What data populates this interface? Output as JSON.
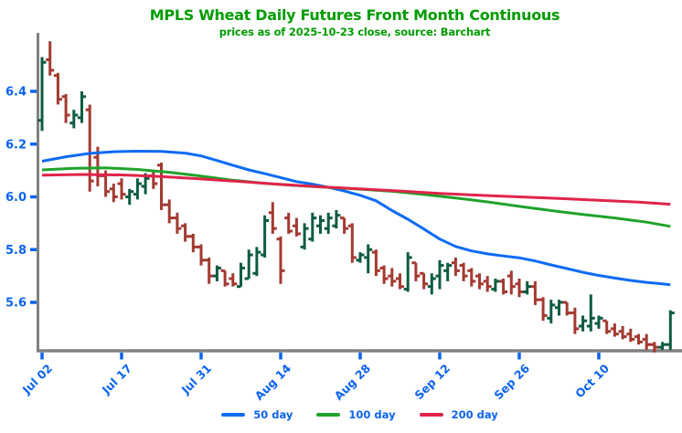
{
  "header": {
    "title": "MPLS Wheat Daily Futures Front Month Continuous",
    "subtitle": "prices as of 2025-10-23 close, source: Barchart"
  },
  "colors": {
    "title_green": "#009c00",
    "label_blue": "#0b64f0",
    "bar_up_green": "#0d5c40",
    "bar_down_red": "#a33a31",
    "ma50_blue": "#0d6bf5",
    "ma100_green": "#1fa32b",
    "ma200_red": "#e02449",
    "axis_gray": "#808080"
  },
  "legend": {
    "items": [
      {
        "label": "50 day",
        "color": "#0d6bf5"
      },
      {
        "label": "100 day",
        "color": "#1fa32b"
      },
      {
        "label": "200 day",
        "color": "#e02449"
      }
    ]
  },
  "chart_data": {
    "type": "bar",
    "subtype": "ohlc-daily-with-moving-averages",
    "title": "MPLS Wheat Daily Futures Front Month Continuous",
    "subtitle": "prices as of 2025-10-23 close, source: Barchart",
    "xlabel": "",
    "ylabel": "",
    "ylim": [
      5.41,
      6.63
    ],
    "grid": false,
    "legend_position": "bottom-center",
    "yticks": [
      6.4,
      6.2,
      6.0,
      5.8,
      5.6
    ],
    "xticks": [
      {
        "index": 0,
        "label": "Jul 02"
      },
      {
        "index": 10,
        "label": "Jul 17"
      },
      {
        "index": 20,
        "label": "Jul 31"
      },
      {
        "index": 30,
        "label": "Aug 14"
      },
      {
        "index": 40,
        "label": "Aug 28"
      },
      {
        "index": 50,
        "label": "Sep 12"
      },
      {
        "index": 60,
        "label": "Sep 26"
      },
      {
        "index": 70,
        "label": "Oct 10"
      }
    ],
    "bars_format": [
      "date",
      "open",
      "high",
      "low",
      "close"
    ],
    "bars": [
      [
        "Jul 02",
        6.29,
        6.53,
        6.25,
        6.51
      ],
      [
        "Jul 03",
        6.52,
        6.59,
        6.46,
        6.48
      ],
      [
        "Jul 07",
        6.46,
        6.47,
        6.35,
        6.37
      ],
      [
        "Jul 08",
        6.38,
        6.39,
        6.28,
        6.31
      ],
      [
        "Jul 09",
        6.28,
        6.33,
        6.26,
        6.31
      ],
      [
        "Jul 10",
        6.3,
        6.4,
        6.28,
        6.38
      ],
      [
        "Jul 11",
        6.33,
        6.35,
        6.02,
        6.06
      ],
      [
        "Jul 14",
        6.15,
        6.19,
        6.04,
        6.08
      ],
      [
        "Jul 15",
        6.08,
        6.1,
        6.0,
        6.02
      ],
      [
        "Jul 16",
        6.03,
        6.05,
        5.98,
        6.0
      ],
      [
        "Jul 17",
        6.05,
        6.07,
        5.99,
        6.01
      ],
      [
        "Jul 18",
        6.0,
        6.03,
        5.97,
        6.02
      ],
      [
        "Jul 21",
        6.01,
        6.07,
        5.99,
        6.05
      ],
      [
        "Jul 22",
        6.04,
        6.09,
        6.01,
        6.07
      ],
      [
        "Jul 23",
        6.08,
        6.1,
        6.03,
        6.05
      ],
      [
        "Jul 24",
        6.12,
        6.13,
        5.95,
        5.97
      ],
      [
        "Jul 25",
        5.97,
        5.99,
        5.9,
        5.92
      ],
      [
        "Jul 28",
        5.92,
        5.94,
        5.86,
        5.88
      ],
      [
        "Jul 29",
        5.89,
        5.9,
        5.83,
        5.85
      ],
      [
        "Jul 30",
        5.85,
        5.86,
        5.79,
        5.81
      ],
      [
        "Jul 31",
        5.81,
        5.82,
        5.74,
        5.76
      ],
      [
        "Aug 01",
        5.76,
        5.77,
        5.67,
        5.7
      ],
      [
        "Aug 04",
        5.7,
        5.74,
        5.68,
        5.73
      ],
      [
        "Aug 05",
        5.72,
        5.72,
        5.66,
        5.67
      ],
      [
        "Aug 06",
        5.69,
        5.71,
        5.66,
        5.67
      ],
      [
        "Aug 07",
        5.66,
        5.75,
        5.66,
        5.73
      ],
      [
        "Aug 08",
        5.69,
        5.8,
        5.69,
        5.78
      ],
      [
        "Aug 11",
        5.71,
        5.81,
        5.7,
        5.79
      ],
      [
        "Aug 12",
        5.78,
        5.93,
        5.77,
        5.91
      ],
      [
        "Aug 13",
        5.94,
        5.98,
        5.86,
        5.88
      ],
      [
        "Aug 14",
        5.84,
        5.85,
        5.67,
        5.72
      ],
      [
        "Aug 15",
        5.92,
        5.94,
        5.86,
        5.87
      ],
      [
        "Aug 18",
        5.89,
        5.92,
        5.85,
        5.86
      ],
      [
        "Aug 19",
        5.81,
        5.9,
        5.8,
        5.88
      ],
      [
        "Aug 20",
        5.84,
        5.94,
        5.83,
        5.92
      ],
      [
        "Aug 21",
        5.89,
        5.93,
        5.86,
        5.91
      ],
      [
        "Aug 22",
        5.88,
        5.94,
        5.86,
        5.92
      ],
      [
        "Aug 25",
        5.89,
        5.95,
        5.88,
        5.93
      ],
      [
        "Aug 26",
        5.92,
        5.92,
        5.86,
        5.88
      ],
      [
        "Aug 27",
        5.89,
        5.9,
        5.75,
        5.77
      ],
      [
        "Aug 28",
        5.76,
        5.79,
        5.75,
        5.78
      ],
      [
        "Aug 29",
        5.77,
        5.82,
        5.71,
        5.8
      ],
      [
        "Sep 02",
        5.79,
        5.8,
        5.7,
        5.72
      ],
      [
        "Sep 03",
        5.73,
        5.74,
        5.67,
        5.69
      ],
      [
        "Sep 04",
        5.7,
        5.73,
        5.66,
        5.68
      ],
      [
        "Sep 05",
        5.69,
        5.71,
        5.65,
        5.66
      ],
      [
        "Sep 08",
        5.65,
        5.79,
        5.64,
        5.77
      ],
      [
        "Sep 09",
        5.75,
        5.75,
        5.68,
        5.7
      ],
      [
        "Sep 10",
        5.71,
        5.71,
        5.65,
        5.67
      ],
      [
        "Sep 11",
        5.66,
        5.71,
        5.63,
        5.69
      ],
      [
        "Sep 12",
        5.7,
        5.76,
        5.65,
        5.74
      ],
      [
        "Sep 15",
        5.72,
        5.75,
        5.68,
        5.74
      ],
      [
        "Sep 16",
        5.75,
        5.77,
        5.7,
        5.72
      ],
      [
        "Sep 17",
        5.74,
        5.75,
        5.68,
        5.7
      ],
      [
        "Sep 18",
        5.72,
        5.73,
        5.66,
        5.68
      ],
      [
        "Sep 19",
        5.7,
        5.71,
        5.65,
        5.67
      ],
      [
        "Sep 22",
        5.68,
        5.7,
        5.64,
        5.66
      ],
      [
        "Sep 23",
        5.65,
        5.69,
        5.64,
        5.68
      ],
      [
        "Sep 24",
        5.68,
        5.69,
        5.63,
        5.64
      ],
      [
        "Sep 25",
        5.7,
        5.72,
        5.63,
        5.66
      ],
      [
        "Sep 26",
        5.67,
        5.69,
        5.62,
        5.64
      ],
      [
        "Sep 29",
        5.64,
        5.68,
        5.63,
        5.66
      ],
      [
        "Sep 30",
        5.66,
        5.68,
        5.59,
        5.61
      ],
      [
        "Oct 01",
        5.61,
        5.62,
        5.53,
        5.55
      ],
      [
        "Oct 02",
        5.54,
        5.61,
        5.52,
        5.59
      ],
      [
        "Oct 03",
        5.58,
        5.61,
        5.55,
        5.6
      ],
      [
        "Oct 06",
        5.6,
        5.6,
        5.55,
        5.56
      ],
      [
        "Oct 07",
        5.56,
        5.58,
        5.48,
        5.5
      ],
      [
        "Oct 08",
        5.51,
        5.55,
        5.49,
        5.53
      ],
      [
        "Oct 09",
        5.51,
        5.63,
        5.49,
        5.54
      ],
      [
        "Oct 10",
        5.52,
        5.55,
        5.5,
        5.54
      ],
      [
        "Oct 13",
        5.53,
        5.53,
        5.48,
        5.49
      ],
      [
        "Oct 14",
        5.5,
        5.52,
        5.47,
        5.48
      ],
      [
        "Oct 15",
        5.49,
        5.51,
        5.46,
        5.47
      ],
      [
        "Oct 16",
        5.48,
        5.5,
        5.45,
        5.46
      ],
      [
        "Oct 17",
        5.47,
        5.48,
        5.44,
        5.45
      ],
      [
        "Oct 20",
        5.46,
        5.48,
        5.42,
        5.44
      ],
      [
        "Oct 21",
        5.44,
        5.45,
        5.41,
        5.43
      ],
      [
        "Oct 22",
        5.43,
        5.45,
        5.42,
        5.44
      ],
      [
        "Oct 23",
        5.44,
        5.57,
        5.42,
        5.56
      ]
    ],
    "series": [
      {
        "name": "50 day",
        "color": "#0d6bf5",
        "points": [
          [
            0,
            6.135
          ],
          [
            3,
            6.152
          ],
          [
            6,
            6.165
          ],
          [
            9,
            6.171
          ],
          [
            12,
            6.173
          ],
          [
            15,
            6.172
          ],
          [
            18,
            6.166
          ],
          [
            20,
            6.155
          ],
          [
            22,
            6.138
          ],
          [
            24,
            6.12
          ],
          [
            26,
            6.102
          ],
          [
            28,
            6.088
          ],
          [
            30,
            6.073
          ],
          [
            32,
            6.058
          ],
          [
            34,
            6.048
          ],
          [
            36,
            6.036
          ],
          [
            38,
            6.022
          ],
          [
            40,
            6.006
          ],
          [
            42,
            5.985
          ],
          [
            44,
            5.948
          ],
          [
            46,
            5.915
          ],
          [
            48,
            5.878
          ],
          [
            50,
            5.84
          ],
          [
            52,
            5.812
          ],
          [
            54,
            5.795
          ],
          [
            56,
            5.784
          ],
          [
            58,
            5.776
          ],
          [
            60,
            5.769
          ],
          [
            62,
            5.757
          ],
          [
            64,
            5.742
          ],
          [
            66,
            5.728
          ],
          [
            68,
            5.714
          ],
          [
            70,
            5.702
          ],
          [
            72,
            5.692
          ],
          [
            74,
            5.683
          ],
          [
            76,
            5.676
          ],
          [
            78,
            5.67
          ],
          [
            79,
            5.667
          ]
        ]
      },
      {
        "name": "100 day",
        "color": "#1fa32b",
        "points": [
          [
            0,
            6.102
          ],
          [
            4,
            6.108
          ],
          [
            8,
            6.11
          ],
          [
            12,
            6.104
          ],
          [
            16,
            6.093
          ],
          [
            20,
            6.079
          ],
          [
            24,
            6.063
          ],
          [
            28,
            6.051
          ],
          [
            32,
            6.043
          ],
          [
            36,
            6.036
          ],
          [
            40,
            6.029
          ],
          [
            44,
            6.021
          ],
          [
            48,
            6.009
          ],
          [
            52,
            5.996
          ],
          [
            56,
            5.981
          ],
          [
            60,
            5.964
          ],
          [
            64,
            5.948
          ],
          [
            68,
            5.933
          ],
          [
            72,
            5.92
          ],
          [
            76,
            5.904
          ],
          [
            79,
            5.888
          ]
        ]
      },
      {
        "name": "200 day",
        "color": "#e02449",
        "points": [
          [
            0,
            6.082
          ],
          [
            5,
            6.085
          ],
          [
            10,
            6.083
          ],
          [
            15,
            6.077
          ],
          [
            20,
            6.068
          ],
          [
            25,
            6.058
          ],
          [
            30,
            6.047
          ],
          [
            35,
            6.038
          ],
          [
            40,
            6.03
          ],
          [
            45,
            6.022
          ],
          [
            50,
            6.013
          ],
          [
            55,
            6.006
          ],
          [
            60,
            6.0
          ],
          [
            65,
            5.994
          ],
          [
            70,
            5.987
          ],
          [
            75,
            5.98
          ],
          [
            79,
            5.972
          ]
        ]
      }
    ]
  }
}
